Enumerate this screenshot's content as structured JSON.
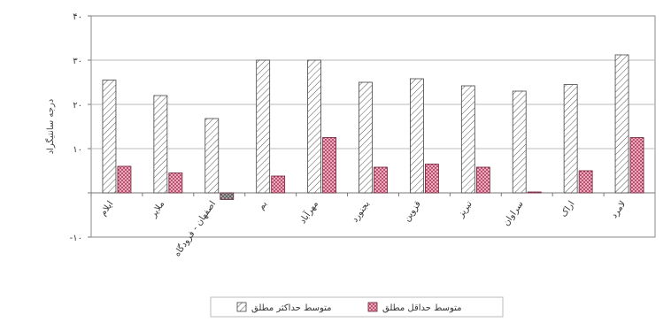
{
  "chart_data": {
    "type": "bar",
    "categories": [
      "ایلام",
      "ملایر",
      "اصفهان - فرودگاه",
      "بم",
      "مهرآباد",
      "بجنورد",
      "قزوین",
      "تبریز",
      "سراوان",
      "اراک",
      "لامرد"
    ],
    "series": [
      {
        "name": "متوسط حداکثر مطلق",
        "values": [
          25.5,
          22.0,
          16.8,
          30.0,
          30.0,
          25.0,
          25.8,
          24.2,
          23.0,
          24.5,
          31.2
        ],
        "color": "#ffffff",
        "pattern": "diagonal-hatch"
      },
      {
        "name": "متوسط حداقل مطلق",
        "values": [
          6.0,
          4.5,
          -1.5,
          3.8,
          12.5,
          5.8,
          6.5,
          5.8,
          0.2,
          5.0,
          12.5
        ],
        "color": "#b5365b",
        "pattern": "crosshatch"
      }
    ],
    "ylabel": "درجه سانتیگراد",
    "ylim": [
      -10,
      40
    ],
    "yticks": [
      "-۱۰",
      "",
      "۱۰",
      "۲۰",
      "۳۰",
      "۴۰"
    ],
    "grid": true,
    "legend": "bottom"
  }
}
